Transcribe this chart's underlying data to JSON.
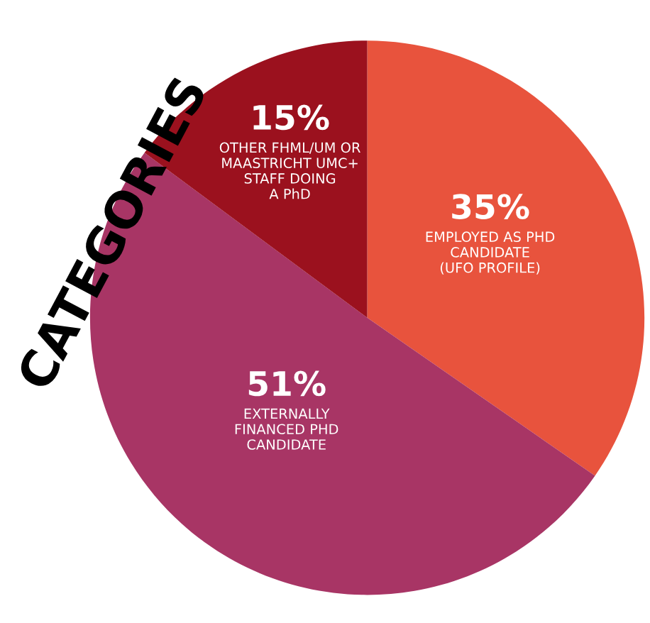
{
  "chart_data": {
    "type": "pie",
    "title": "CATEGORIES",
    "categories": [
      "EMPLOYED AS PHD\nCANDIDATE\n(UFO PROFILE)",
      "EXTERNALLY\nFINANCED PHD\nCANDIDATE",
      "OTHER FHML/UM OR\nMAASTRICHT UMC+\nSTAFF DOING\nA PhD"
    ],
    "values": [
      35,
      51,
      15
    ],
    "value_labels": [
      "35%",
      "51%",
      "15%"
    ],
    "colors": [
      "#e8533d",
      "#a83565",
      "#9b111e"
    ]
  }
}
